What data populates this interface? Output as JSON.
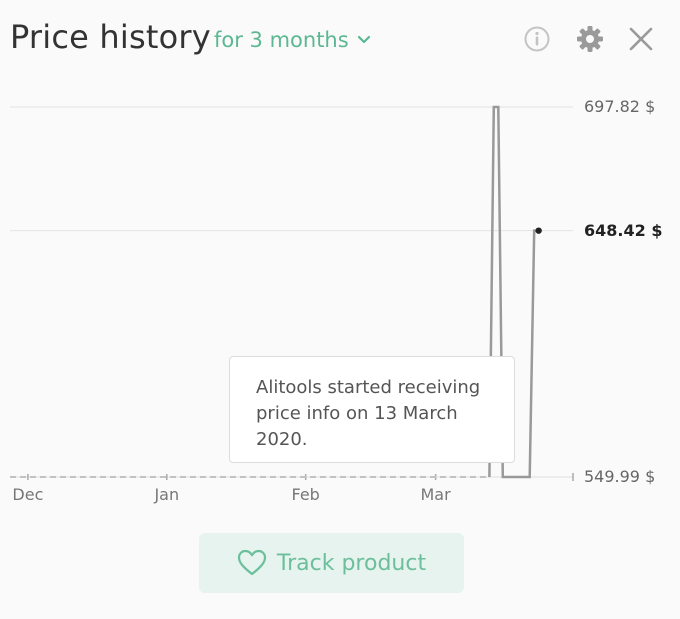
{
  "header": {
    "title": "Price history",
    "period_label": "for 3 months",
    "icons": [
      "info-icon",
      "gear-icon",
      "close-icon"
    ]
  },
  "chart_data": {
    "type": "line",
    "currency_suffix": "$",
    "y_tick_labels": [
      "697.82 $",
      "648.42 $",
      "549.99 $"
    ],
    "y_ticks": [
      697.82,
      648.42,
      549.99
    ],
    "current_price_label": "648.42 $",
    "x_tick_labels": [
      "Dec",
      "Jan",
      "Feb",
      "Mar"
    ],
    "x_tick_dates": [
      "2019-12-01",
      "2020-01-01",
      "2020-02-01",
      "2020-03-01"
    ],
    "range": [
      "2019-11-27",
      "2020-03-31"
    ],
    "ylim": [
      549.99,
      697.82
    ],
    "tracking_start": "2020-03-13",
    "estimated_series": {
      "x": [
        "2019-11-27",
        "2020-03-13"
      ],
      "y": [
        549.99,
        549.99
      ]
    },
    "series": [
      {
        "x": [
          "2020-03-13",
          "2020-03-14",
          "2020-03-15",
          "2020-03-16",
          "2020-03-22",
          "2020-03-23",
          "2020-03-24"
        ],
        "y": [
          549.99,
          697.82,
          697.82,
          549.99,
          549.99,
          648.42,
          648.42
        ]
      }
    ],
    "grid": true
  },
  "tooltip": {
    "text": "Alitools started receiving price info on 13 March 2020."
  },
  "track": {
    "label": "Track product"
  },
  "colors": {
    "accent": "#5bb892",
    "line": "#999999",
    "button_bg": "#e7f3ee"
  }
}
